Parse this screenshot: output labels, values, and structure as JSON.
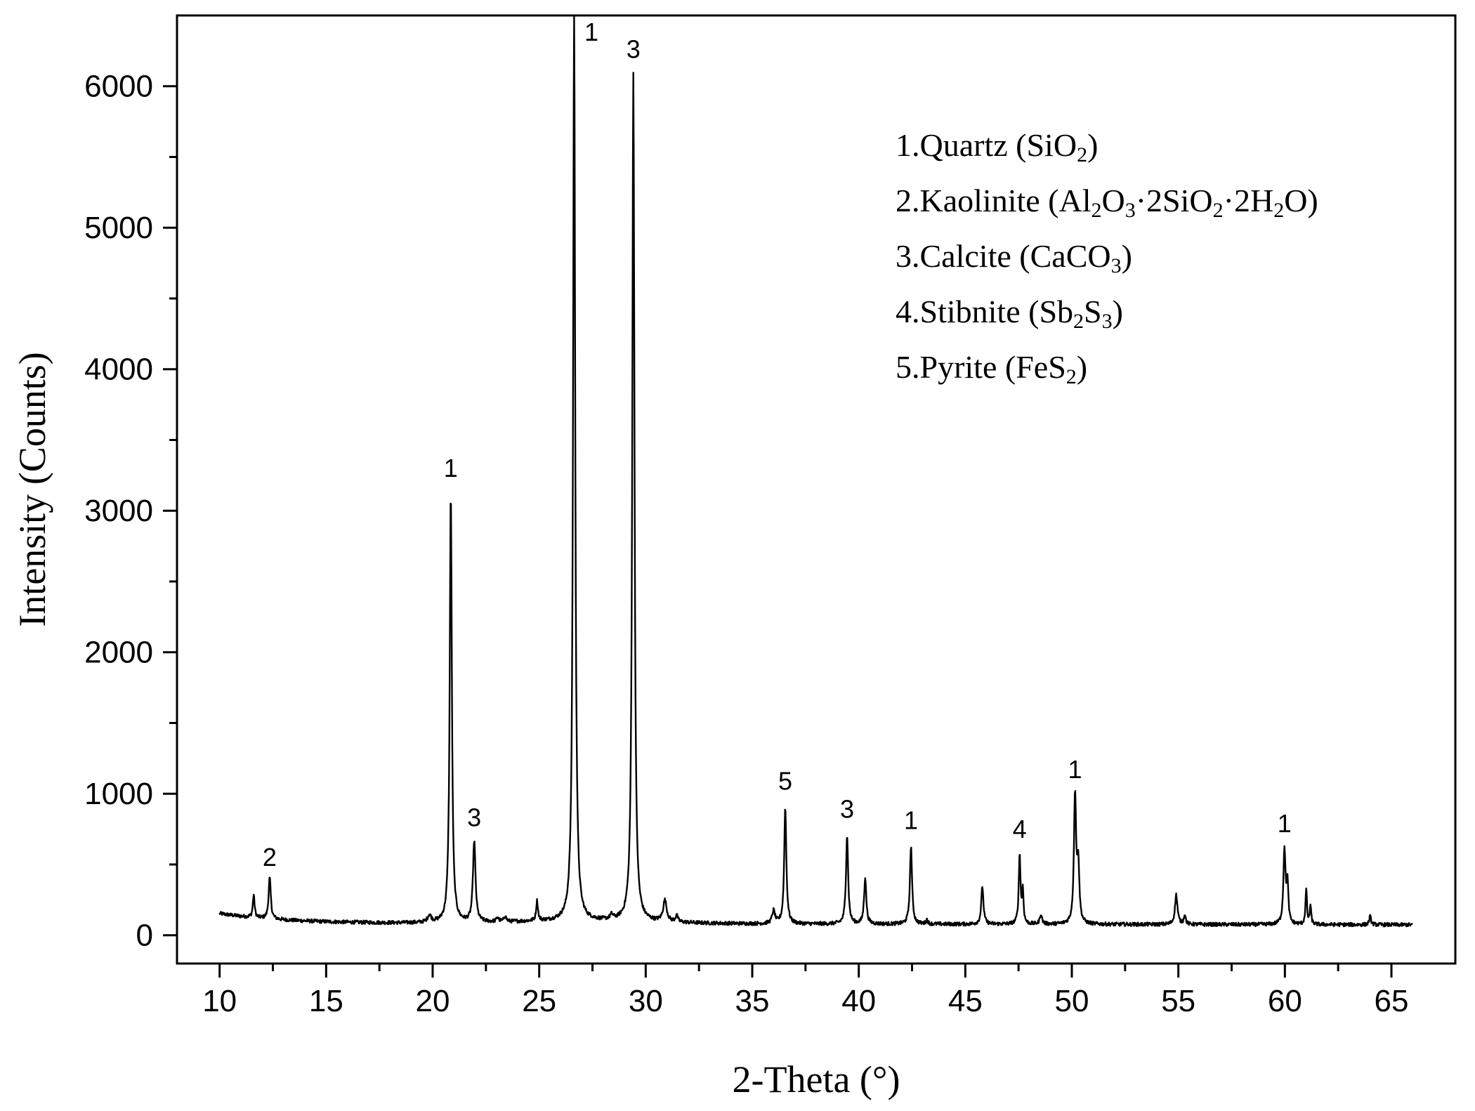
{
  "chart_data": {
    "type": "line",
    "xlabel": "2-Theta (°)",
    "ylabel": "Intensity (Counts)",
    "xlim": [
      8,
      68
    ],
    "ylim": [
      -200,
      6500
    ],
    "x_ticks": [
      10,
      15,
      20,
      25,
      30,
      35,
      40,
      45,
      50,
      55,
      60,
      65
    ],
    "y_ticks": [
      0,
      1000,
      2000,
      3000,
      4000,
      5000,
      6000
    ],
    "x_tick_labels": [
      "10",
      "15",
      "20",
      "25",
      "30",
      "35",
      "40",
      "45",
      "50",
      "55",
      "60",
      "65"
    ],
    "y_tick_labels": [
      "0",
      "1000",
      "2000",
      "3000",
      "4000",
      "5000",
      "6000"
    ],
    "grid": false,
    "legend_position": "top-right",
    "line_color": "#000000",
    "peaks": [
      {
        "x": 11.6,
        "y": 250,
        "w": 0.05
      },
      {
        "x": 12.35,
        "y": 380,
        "w": 0.06
      },
      {
        "x": 19.85,
        "y": 140,
        "w": 0.1
      },
      {
        "x": 20.85,
        "y": 3130,
        "w": 0.06
      },
      {
        "x": 21.95,
        "y": 660,
        "w": 0.07
      },
      {
        "x": 23.05,
        "y": 120,
        "w": 0.06
      },
      {
        "x": 23.4,
        "y": 130,
        "w": 0.06
      },
      {
        "x": 24.9,
        "y": 230,
        "w": 0.05
      },
      {
        "x": 26.64,
        "y": 6500,
        "w": 0.06
      },
      {
        "x": 28.4,
        "y": 120,
        "w": 0.08
      },
      {
        "x": 29.42,
        "y": 6090,
        "w": 0.06
      },
      {
        "x": 30.9,
        "y": 240,
        "w": 0.1
      },
      {
        "x": 31.45,
        "y": 140,
        "w": 0.06
      },
      {
        "x": 36.0,
        "y": 180,
        "w": 0.08
      },
      {
        "x": 36.55,
        "y": 920,
        "w": 0.06
      },
      {
        "x": 39.45,
        "y": 720,
        "w": 0.06
      },
      {
        "x": 40.3,
        "y": 420,
        "w": 0.06
      },
      {
        "x": 42.45,
        "y": 640,
        "w": 0.06
      },
      {
        "x": 43.2,
        "y": 120,
        "w": 0.05
      },
      {
        "x": 45.8,
        "y": 360,
        "w": 0.06
      },
      {
        "x": 47.55,
        "y": 580,
        "w": 0.05
      },
      {
        "x": 47.7,
        "y": 320,
        "w": 0.04
      },
      {
        "x": 48.55,
        "y": 160,
        "w": 0.06
      },
      {
        "x": 50.15,
        "y": 1000,
        "w": 0.06
      },
      {
        "x": 50.3,
        "y": 500,
        "w": 0.06
      },
      {
        "x": 54.9,
        "y": 300,
        "w": 0.07
      },
      {
        "x": 55.3,
        "y": 160,
        "w": 0.05
      },
      {
        "x": 59.98,
        "y": 620,
        "w": 0.06
      },
      {
        "x": 60.12,
        "y": 360,
        "w": 0.05
      },
      {
        "x": 61.0,
        "y": 340,
        "w": 0.04
      },
      {
        "x": 61.2,
        "y": 220,
        "w": 0.04
      },
      {
        "x": 64.0,
        "y": 150,
        "w": 0.05
      }
    ],
    "peak_labels": [
      {
        "x": 12.35,
        "y": 380,
        "text": "2"
      },
      {
        "x": 20.85,
        "y": 3130,
        "text": "1"
      },
      {
        "x": 21.95,
        "y": 660,
        "text": "3"
      },
      {
        "x": 27.45,
        "y": 6220,
        "text": "1"
      },
      {
        "x": 29.42,
        "y": 6090,
        "text": "3"
      },
      {
        "x": 36.55,
        "y": 920,
        "text": "5"
      },
      {
        "x": 39.45,
        "y": 720,
        "text": "3"
      },
      {
        "x": 42.45,
        "y": 640,
        "text": "1"
      },
      {
        "x": 47.55,
        "y": 580,
        "text": "4"
      },
      {
        "x": 50.15,
        "y": 1000,
        "text": "1"
      },
      {
        "x": 59.98,
        "y": 620,
        "text": "1"
      }
    ],
    "legend": [
      {
        "parts": [
          {
            "t": "1.Quartz (SiO"
          },
          {
            "t": "2",
            "sub": true
          },
          {
            "t": ")"
          }
        ]
      },
      {
        "parts": [
          {
            "t": "2.Kaolinite (Al"
          },
          {
            "t": "2",
            "sub": true
          },
          {
            "t": "O"
          },
          {
            "t": "3",
            "sub": true
          },
          {
            "t": "·2SiO"
          },
          {
            "t": "2",
            "sub": true
          },
          {
            "t": "·2H"
          },
          {
            "t": "2",
            "sub": true
          },
          {
            "t": "O)"
          }
        ]
      },
      {
        "parts": [
          {
            "t": "3.Calcite (CaCO"
          },
          {
            "t": "3",
            "sub": true
          },
          {
            "t": ")"
          }
        ]
      },
      {
        "parts": [
          {
            "t": "4.Stibnite (Sb"
          },
          {
            "t": "2",
            "sub": true
          },
          {
            "t": "S"
          },
          {
            "t": "3",
            "sub": true
          },
          {
            "t": ")"
          }
        ]
      },
      {
        "parts": [
          {
            "t": "5.Pyrite (FeS"
          },
          {
            "t": "2",
            "sub": true
          },
          {
            "t": ")"
          }
        ]
      }
    ]
  }
}
